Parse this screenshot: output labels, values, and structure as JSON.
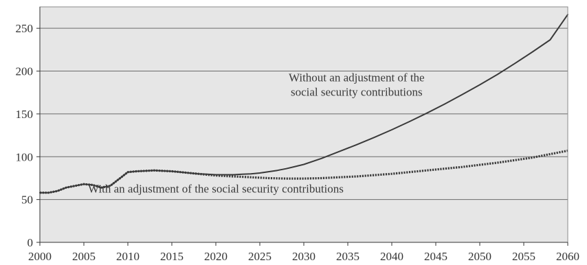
{
  "chart_data": {
    "type": "line",
    "title": "",
    "xlabel": "",
    "ylabel": "",
    "xlim": [
      2000,
      2060
    ],
    "ylim": [
      0,
      275
    ],
    "x_ticks": [
      2000,
      2005,
      2010,
      2015,
      2020,
      2025,
      2030,
      2035,
      2040,
      2045,
      2050,
      2055,
      2060
    ],
    "y_ticks": [
      0,
      50,
      100,
      150,
      200,
      250
    ],
    "grid": "horizontal",
    "legend": "none",
    "plot_background": "#e6e6e6",
    "series": [
      {
        "style": "solid",
        "color": "#3a3a3a",
        "x": [
          2000,
          2001,
          2002,
          2003,
          2004,
          2005,
          2006,
          2007,
          2008,
          2009,
          2010,
          2011,
          2012,
          2013,
          2014,
          2015,
          2016,
          2017,
          2018,
          2019,
          2020,
          2021,
          2022,
          2023,
          2024,
          2025,
          2026,
          2027,
          2028,
          2029,
          2030,
          2032,
          2034,
          2036,
          2038,
          2040,
          2042,
          2044,
          2046,
          2048,
          2050,
          2052,
          2054,
          2056,
          2058,
          2060
        ],
        "y": [
          58,
          58,
          60,
          64,
          66,
          68,
          67,
          64,
          66,
          74,
          82,
          83,
          83.5,
          84,
          83.5,
          83,
          82,
          81,
          80,
          79.5,
          79,
          79,
          79,
          79.5,
          80,
          81,
          82.5,
          84,
          86,
          88.5,
          91,
          98,
          106,
          114,
          122.5,
          131.5,
          141,
          151,
          161.5,
          172.5,
          184,
          196,
          209,
          222.5,
          236.5,
          266
        ]
      },
      {
        "style": "dotted",
        "color": "#3a3a3a",
        "x": [
          2000,
          2001,
          2002,
          2003,
          2004,
          2005,
          2006,
          2007,
          2008,
          2009,
          2010,
          2011,
          2012,
          2013,
          2014,
          2015,
          2016,
          2017,
          2018,
          2019,
          2020,
          2022,
          2024,
          2026,
          2028,
          2030,
          2032,
          2034,
          2036,
          2038,
          2040,
          2042,
          2044,
          2046,
          2048,
          2050,
          2052,
          2054,
          2056,
          2058,
          2060
        ],
        "y": [
          58,
          58,
          60,
          64,
          66,
          68,
          67,
          64,
          66,
          74,
          82,
          83,
          83.5,
          84,
          83.5,
          83,
          82,
          81,
          80,
          79,
          78,
          77,
          76,
          75,
          74.5,
          74.5,
          75,
          76,
          77,
          78.5,
          80,
          82,
          84,
          86,
          88,
          90.5,
          93,
          96,
          99,
          103,
          107
        ]
      }
    ],
    "annotations": [
      {
        "id": "without",
        "lines": [
          "Without an adjustment of the",
          "social security contributions"
        ],
        "at_x": 2036,
        "at_y": 188,
        "line_step": 21
      },
      {
        "id": "with",
        "lines": [
          "With an adjustment of the social security contributions"
        ],
        "at_x": 2020,
        "at_y": 58
      }
    ]
  }
}
